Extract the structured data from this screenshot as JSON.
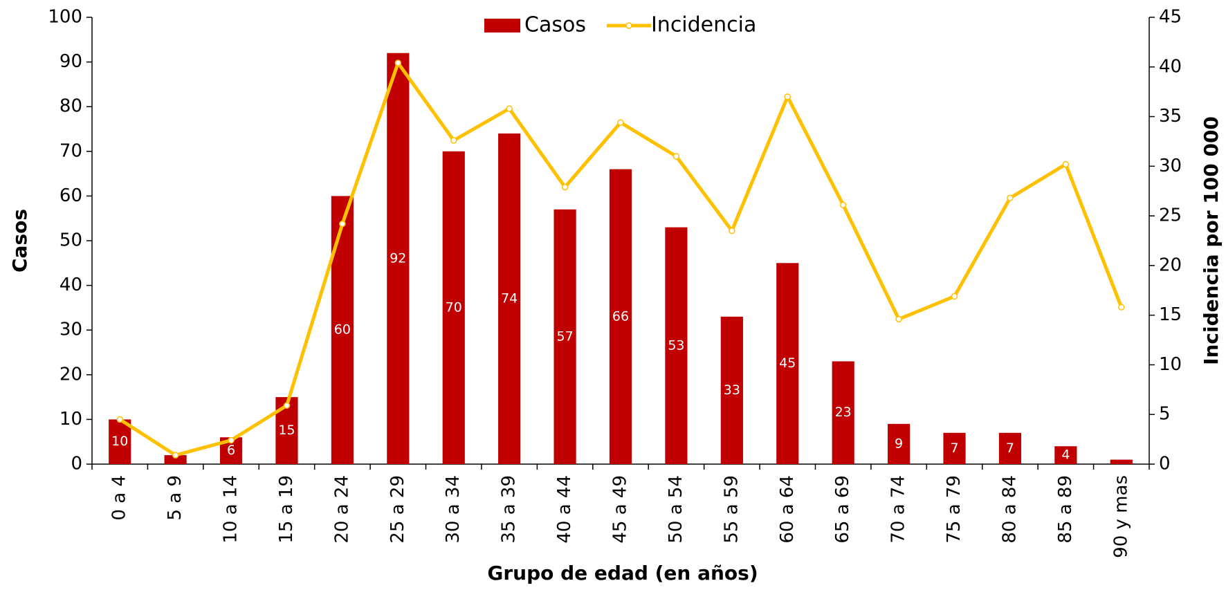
{
  "chart_data": {
    "type": "bar_line",
    "x_label": "Grupo de edad (en años)",
    "y_label": "Casos",
    "y2_label": "Incidencia por 100 000",
    "categories": [
      "0 a 4",
      "5 a 9",
      "10 a 14",
      "15 a 19",
      "20 a 24",
      "25 a 29",
      "30 a 34",
      "35 a 39",
      "40 a 44",
      "45 a 49",
      "50 a 54",
      "55 a 59",
      "60 a 64",
      "65 a 69",
      "70 a 74",
      "75 a 79",
      "80 a 84",
      "85 a 89",
      "90 y mas"
    ],
    "series": [
      {
        "name": "Casos",
        "type": "bar",
        "color": "#c00000",
        "values": [
          10,
          2,
          6,
          15,
          60,
          92,
          70,
          74,
          57,
          66,
          53,
          33,
          45,
          23,
          9,
          7,
          7,
          4,
          1
        ],
        "value_labels": [
          "10",
          null,
          "6",
          "15",
          "60",
          "92",
          "70",
          "74",
          "57",
          "66",
          "53",
          "33",
          "45",
          "23",
          "9",
          "7",
          "7",
          "4",
          null
        ]
      },
      {
        "name": "Incidencia",
        "type": "line",
        "axis": "y2",
        "color": "#ffc000",
        "values": [
          4.5,
          0.9,
          2.4,
          5.9,
          24.2,
          40.4,
          32.6,
          35.8,
          27.9,
          34.4,
          31.0,
          23.5,
          37.0,
          26.1,
          14.6,
          16.9,
          26.8,
          30.2,
          15.8
        ]
      }
    ],
    "ylim": [
      0,
      100
    ],
    "yticks": [
      0,
      10,
      20,
      30,
      40,
      50,
      60,
      70,
      80,
      90,
      100
    ],
    "y2lim": [
      0,
      45
    ],
    "y2ticks": [
      0,
      5,
      10,
      15,
      20,
      25,
      30,
      35,
      40,
      45
    ],
    "legend": "top",
    "grid": false
  }
}
